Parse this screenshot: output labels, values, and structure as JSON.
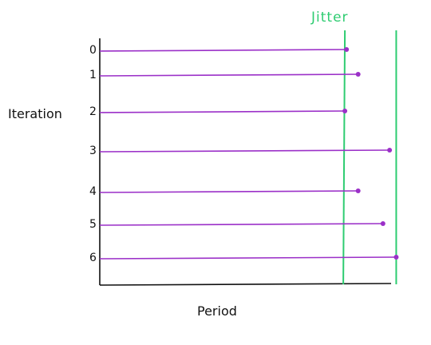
{
  "xlabel": "Period",
  "ylabel": "Iteration",
  "jitter_label": "Jitter",
  "colors": {
    "axis": "#111111",
    "iteration_line": "#9b30c8",
    "jitter": "#2ecc71",
    "text": "#111111"
  },
  "iterations": [
    {
      "label": "0",
      "period_end": 0.745
    },
    {
      "label": "1",
      "period_end": 0.78
    },
    {
      "label": "2",
      "period_end": 0.74
    },
    {
      "label": "3",
      "period_end": 0.875
    },
    {
      "label": "4",
      "period_end": 0.78
    },
    {
      "label": "5",
      "period_end": 0.855
    },
    {
      "label": "6",
      "period_end": 0.895
    }
  ],
  "jitter_bounds": [
    0.74,
    0.895
  ]
}
